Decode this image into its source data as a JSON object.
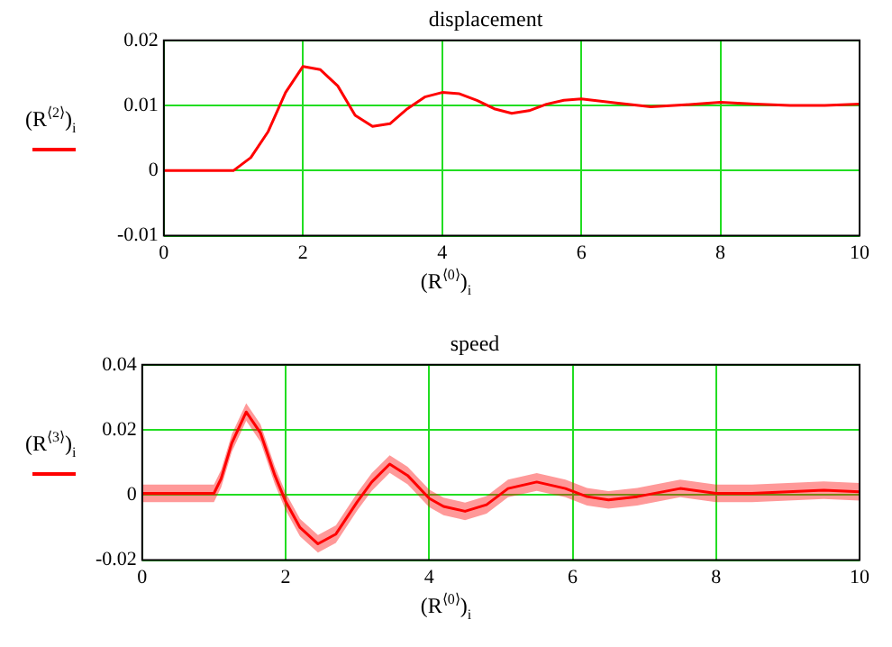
{
  "chart_data": [
    {
      "type": "line",
      "title": "displacement",
      "xlabel": "(R$^{⟨0⟩}$)$_{i}$",
      "ylabel": "(R$^{⟨2⟩}$)$_{i}$",
      "x": [
        0,
        0.5,
        1,
        1.25,
        1.5,
        1.75,
        2,
        2.25,
        2.5,
        2.75,
        3,
        3.25,
        3.5,
        3.75,
        4,
        4.25,
        4.5,
        4.75,
        5,
        5.25,
        5.5,
        5.75,
        6,
        6.5,
        7,
        7.5,
        8,
        8.5,
        9,
        9.5,
        10
      ],
      "series": [
        {
          "color": "#ff0000",
          "values": [
            0,
            0,
            0,
            0.002,
            0.006,
            0.012,
            0.016,
            0.0155,
            0.013,
            0.0085,
            0.0068,
            0.0072,
            0.0095,
            0.0113,
            0.012,
            0.0118,
            0.0108,
            0.0095,
            0.0088,
            0.0092,
            0.0102,
            0.0108,
            0.011,
            0.0104,
            0.0098,
            0.0101,
            0.0105,
            0.0102,
            0.01,
            0.01,
            0.0102
          ]
        }
      ],
      "xlim": [
        0,
        10
      ],
      "xticks": [
        0,
        2,
        4,
        6,
        8,
        10
      ],
      "ylim": [
        -0.01,
        0.02
      ],
      "yticks": [
        -0.01,
        0,
        0.01,
        0.02
      ],
      "grid": true,
      "legend": false
    },
    {
      "type": "line",
      "title": "speed",
      "xlabel": "(R$^{⟨0⟩}$)$_{i}$",
      "ylabel": "(R$^{⟨3⟩}$)$_{i}$",
      "x": [
        0,
        0.5,
        1,
        1.1,
        1.25,
        1.45,
        1.65,
        1.85,
        2,
        2.2,
        2.45,
        2.7,
        3,
        3.2,
        3.45,
        3.7,
        4,
        4.2,
        4.5,
        4.8,
        5.1,
        5.5,
        5.9,
        6.2,
        6.5,
        6.9,
        7.5,
        8,
        8.5,
        9,
        9.5,
        10
      ],
      "series": [
        {
          "color": "#ff0000",
          "values": [
            0.0005,
            0.0005,
            0.0005,
            0.005,
            0.016,
            0.0255,
            0.019,
            0.006,
            -0.002,
            -0.01,
            -0.015,
            -0.012,
            -0.002,
            0.004,
            0.0095,
            0.006,
            -0.001,
            -0.0035,
            -0.005,
            -0.003,
            0.002,
            0.004,
            0.002,
            -0.0005,
            -0.0015,
            -0.0005,
            0.002,
            0.0005,
            0.0005,
            0.001,
            0.0015,
            0.001
          ],
          "lower": [
            -0.0022,
            -0.0022,
            -0.0022,
            0.0023,
            0.0133,
            0.0228,
            0.0163,
            0.0033,
            -0.0047,
            -0.0127,
            -0.0177,
            -0.0147,
            -0.0047,
            0.0013,
            0.0068,
            0.0033,
            -0.0037,
            -0.0062,
            -0.0077,
            -0.0057,
            -0.0007,
            0.0013,
            -0.0007,
            -0.0032,
            -0.0042,
            -0.0032,
            -0.0007,
            -0.0022,
            -0.0022,
            -0.0017,
            -0.0012,
            -0.0017
          ],
          "upper": [
            0.0032,
            0.0032,
            0.0032,
            0.0077,
            0.0187,
            0.0282,
            0.0217,
            0.0087,
            0.0007,
            -0.0073,
            -0.0123,
            -0.0093,
            0.0007,
            0.0067,
            0.0122,
            0.0087,
            0.0017,
            -0.0008,
            -0.0023,
            -0.0003,
            0.0047,
            0.0067,
            0.0047,
            0.0022,
            0.0012,
            0.0022,
            0.0047,
            0.0032,
            0.0032,
            0.0037,
            0.0042,
            0.0037
          ]
        }
      ],
      "xlim": [
        0,
        10
      ],
      "xticks": [
        0,
        2,
        4,
        6,
        8,
        10
      ],
      "ylim": [
        -0.02,
        0.04
      ],
      "yticks": [
        -0.02,
        0,
        0.02,
        0.04
      ],
      "grid": true,
      "legend": false
    }
  ]
}
